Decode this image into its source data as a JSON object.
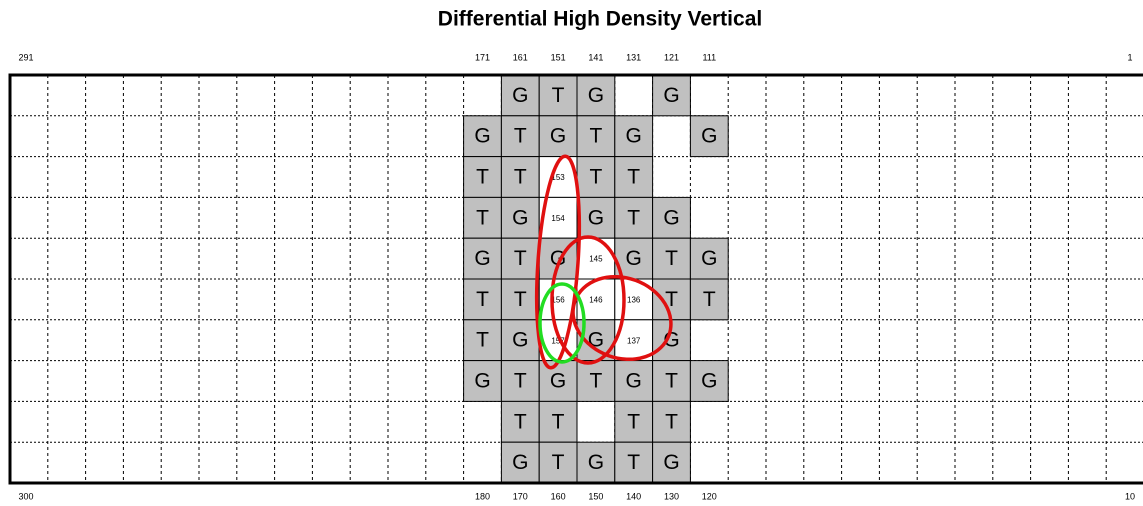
{
  "title": "Differential High Density Vertical",
  "top_labels": {
    "left": "291",
    "middle": [
      "171",
      "161",
      "151",
      "141",
      "131",
      "121",
      "111"
    ],
    "right": "1"
  },
  "bottom_labels": {
    "left": "300",
    "middle": [
      "180",
      "170",
      "160",
      "150",
      "140",
      "130",
      "120"
    ],
    "right": "10"
  },
  "rows": [
    [
      null,
      "G",
      "T",
      "G",
      null,
      "G"
    ],
    [
      "G",
      "T",
      "G",
      "T",
      "G",
      null,
      "G"
    ],
    [
      "T",
      "T",
      "153",
      "T",
      "T"
    ],
    [
      "T",
      "G",
      "154",
      "G",
      "T",
      "G"
    ],
    [
      "G",
      "T",
      "G",
      "145",
      "G",
      "T",
      "G"
    ],
    [
      "T",
      "T",
      "156",
      "146",
      "136",
      "T",
      "T"
    ],
    [
      "T",
      "G",
      "157",
      "G",
      "137",
      "G"
    ],
    [
      "G",
      "T",
      "G",
      "T",
      "G",
      "T",
      "G"
    ],
    [
      null,
      "T",
      "T",
      null,
      "T",
      "T"
    ],
    [
      null,
      "G",
      "T",
      "G",
      "T",
      "G"
    ]
  ]
}
